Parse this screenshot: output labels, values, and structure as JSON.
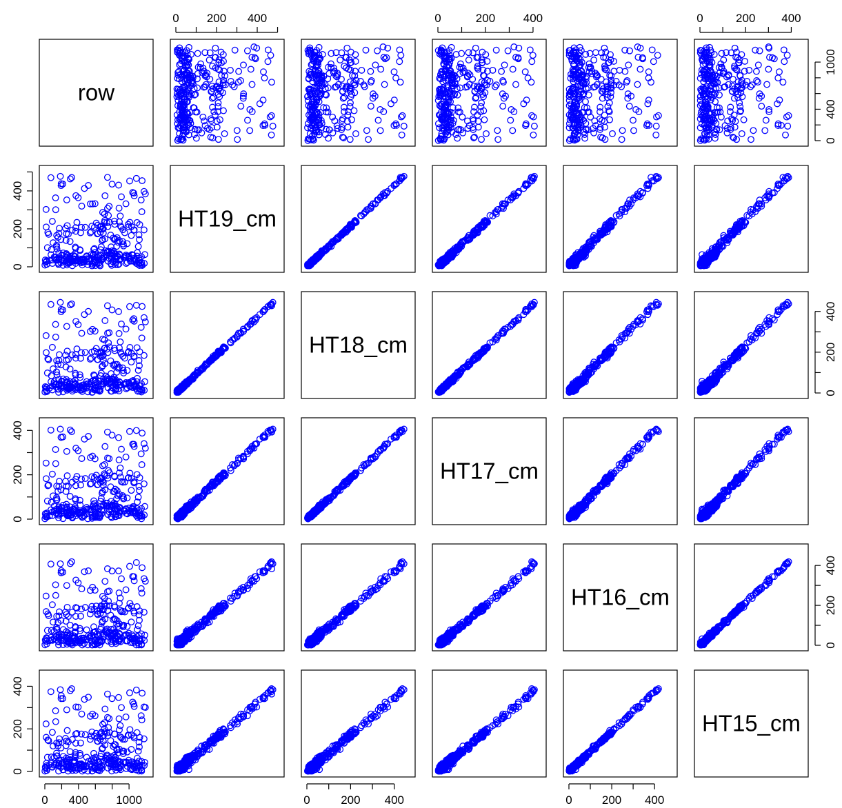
{
  "chart_data": {
    "type": "scatter-matrix",
    "title": "",
    "marker": "open-circle",
    "point_color": "#0000ff",
    "variables": [
      "row",
      "HT19_cm",
      "HT18_cm",
      "HT17_cm",
      "HT16_cm",
      "HT15_cm"
    ],
    "axis_ranges": {
      "row": [
        0,
        1220
      ],
      "HT19_cm": [
        0,
        505
      ],
      "HT18_cm": [
        0,
        470
      ],
      "HT17_cm": [
        0,
        432
      ],
      "HT16_cm": [
        0,
        480
      ],
      "HT15_cm": [
        0,
        450
      ]
    },
    "ticks": {
      "row": {
        "values": [
          0,
          200,
          400,
          600,
          800,
          1000
        ],
        "labels": [
          "0",
          "",
          "400",
          "",
          "",
          "1000"
        ]
      },
      "HT19_cm": {
        "values": [
          0,
          100,
          200,
          300,
          400,
          500
        ],
        "labels": [
          "0",
          "",
          "200",
          "",
          "400",
          ""
        ]
      },
      "HT18_cm": {
        "values": [
          0,
          100,
          200,
          300,
          400
        ],
        "labels": [
          "0",
          "",
          "200",
          "",
          "400"
        ]
      },
      "HT17_cm": {
        "values": [
          0,
          100,
          200,
          300,
          400
        ],
        "labels": [
          "0",
          "",
          "200",
          "",
          "400"
        ]
      },
      "HT16_cm": {
        "values": [
          0,
          100,
          200,
          300,
          400
        ],
        "labels": [
          "0",
          "",
          "200",
          "",
          "400"
        ]
      },
      "HT15_cm": {
        "values": [
          0,
          100,
          200,
          300,
          400
        ],
        "labels": [
          "0",
          "",
          "200",
          "",
          "400"
        ]
      }
    },
    "tick_label_text": [
      "0",
      "200",
      "400",
      "1000"
    ],
    "n_points": 320,
    "height_relationship": "strong positive linear correlation between all HTxx_cm pairs; row uncorrelated with heights",
    "grid": false,
    "legend": "none"
  }
}
